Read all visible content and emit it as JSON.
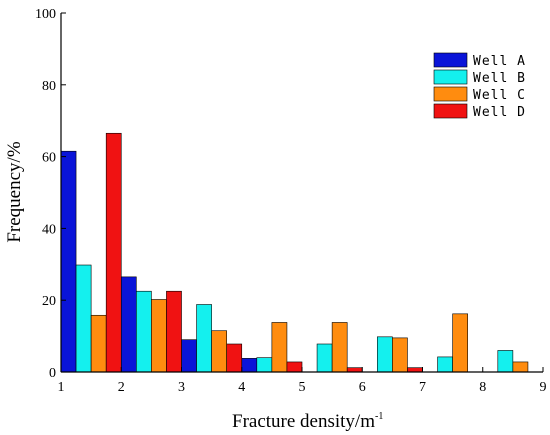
{
  "chart_data": {
    "type": "bar",
    "xlabel": "Fracture density/",
    "xlabel_unit": "m",
    "xlabel_unit_exp": "-1",
    "ylabel": "Frequency/%",
    "xlim": [
      1,
      9
    ],
    "ylim": [
      0,
      100
    ],
    "xticks": [
      "1",
      "2",
      "3",
      "4",
      "5",
      "6",
      "7",
      "8",
      "9"
    ],
    "yticks": [
      "0",
      "20",
      "40",
      "60",
      "80",
      "100"
    ],
    "grid": false,
    "legend_position": "top-right",
    "categories": [
      "1-2",
      "2-3",
      "3-4",
      "4-5",
      "5-6",
      "6-7",
      "7-8",
      "8-9"
    ],
    "series": [
      {
        "name": "Well A",
        "color": "#0a14d8",
        "values": [
          61.5,
          26.5,
          9,
          3.8,
          0,
          0,
          0,
          0
        ]
      },
      {
        "name": "Well B",
        "color": "#14f0ee",
        "values": [
          29.8,
          22.5,
          18.8,
          4,
          7.8,
          9.8,
          4.2,
          6
        ]
      },
      {
        "name": "Well C",
        "color": "#ff8c0f",
        "values": [
          15.8,
          20.2,
          11.5,
          13.8,
          13.8,
          9.5,
          16.2,
          2.8
        ]
      },
      {
        "name": "Well D",
        "color": "#f01212",
        "values": [
          66.5,
          22.5,
          7.8,
          2.8,
          1.2,
          1.2,
          0,
          0
        ]
      }
    ]
  }
}
